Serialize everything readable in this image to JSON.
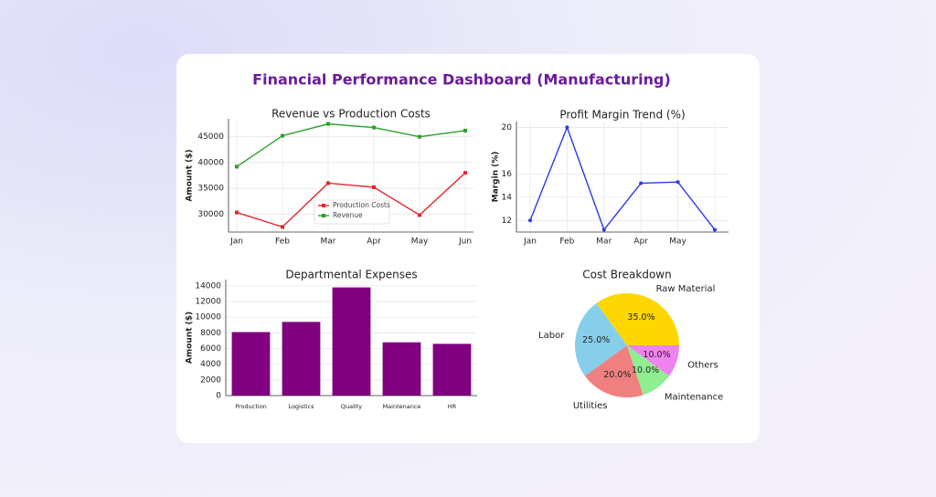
{
  "title": "Financial Performance Dashboard (Manufacturing)",
  "chart_data": [
    {
      "type": "line",
      "title": "Revenue vs Production Costs",
      "ylabel": "Amount ($)",
      "categories": [
        "Jan",
        "Feb",
        "Mar",
        "Apr",
        "May",
        "Jun"
      ],
      "series": [
        {
          "name": "Production Costs",
          "color": "#e8232a",
          "values": [
            30300,
            27500,
            36000,
            35200,
            29800,
            38000
          ]
        },
        {
          "name": "Revenue",
          "color": "#2ca02c",
          "values": [
            39200,
            45200,
            47500,
            46800,
            45000,
            46200
          ]
        }
      ],
      "ylim": [
        26500,
        48500
      ],
      "yticks": [
        30000,
        35000,
        40000,
        45000
      ],
      "grid": true,
      "legend": "lower center"
    },
    {
      "type": "line",
      "title": "Profit Margin Trend (%)",
      "ylabel": "Margin (%)",
      "categories": [
        "Jan",
        "Feb",
        "Mar",
        "Apr",
        "May",
        null
      ],
      "color": "#2a3be8",
      "values": [
        12,
        20,
        11.2,
        15.2,
        15.3,
        11.2
      ],
      "ylim": [
        11,
        20.5
      ],
      "yticks": [
        12,
        14,
        16,
        20
      ],
      "grid": true
    },
    {
      "type": "bar",
      "title": "Departmental Expenses",
      "ylabel": "Amount ($)",
      "categories": [
        "Production",
        "Logistics",
        "Quality",
        "Maintenance",
        "HR"
      ],
      "values": [
        8100,
        9400,
        13800,
        6800,
        6600
      ],
      "color": "#800080",
      "ylim": [
        0,
        14800
      ],
      "yticks": [
        0,
        2000,
        4000,
        6000,
        8000,
        10000,
        12000,
        14000
      ],
      "grid": true
    },
    {
      "type": "pie",
      "title": "Cost Breakdown",
      "categories": [
        "Raw Material",
        "Labor",
        "Utilities",
        "Maintenance",
        "Others"
      ],
      "values": [
        35,
        25,
        20,
        10,
        10
      ],
      "value_labels": [
        "35.0%",
        "25.0%",
        "20.0%",
        "10.0%",
        "10.0%"
      ],
      "colors": [
        "#ffd700",
        "#87ceeb",
        "#f08080",
        "#90ee90",
        "#ee82ee"
      ]
    }
  ]
}
